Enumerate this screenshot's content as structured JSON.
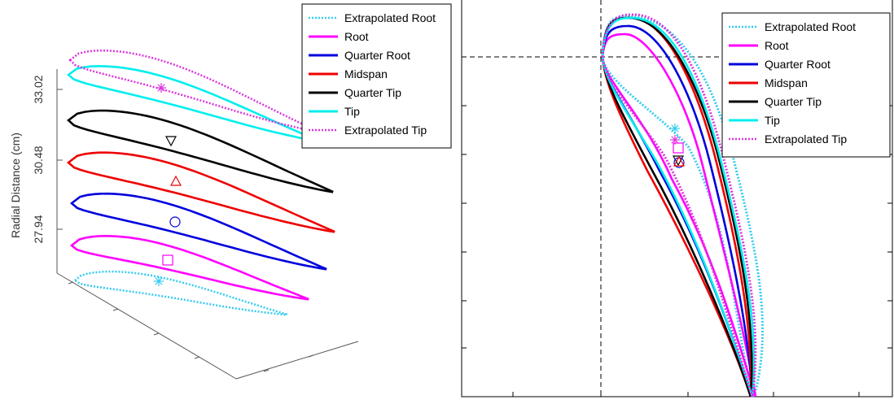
{
  "chart_data": [
    {
      "type": "line",
      "view": "3d-stack",
      "title": "",
      "ylabel": "Radial Distance (cm)",
      "z_ticks": [
        "27.94",
        "30.48",
        "33.02"
      ],
      "legend_position": "top-right",
      "series": [
        {
          "name": "Extrapolated Root",
          "color": "#33ccee",
          "style": "dotted",
          "marker": "*",
          "section_level": 0
        },
        {
          "name": "Root",
          "color": "#ff00ff",
          "style": "solid",
          "marker": "square",
          "section_level": 1
        },
        {
          "name": "Quarter Root",
          "color": "#0000dd",
          "style": "solid",
          "marker": "circle",
          "section_level": 2
        },
        {
          "name": "Midspan",
          "color": "#ee0000",
          "style": "solid",
          "marker": "triangle-up",
          "section_level": 3
        },
        {
          "name": "Quarter Tip",
          "color": "#000000",
          "style": "solid",
          "marker": "triangle-down",
          "section_level": 4
        },
        {
          "name": "Tip",
          "color": "#00eeee",
          "style": "solid",
          "marker": "none",
          "section_level": 5
        },
        {
          "name": "Extrapolated Tip",
          "color": "#dd33dd",
          "style": "dotted",
          "marker": "*",
          "section_level": 5
        }
      ]
    },
    {
      "type": "line",
      "view": "top-overlay",
      "title": "",
      "legend_position": "top-right",
      "reference_lines": "dashed crosshair at leading edge",
      "series": [
        {
          "name": "Extrapolated Root",
          "color": "#33ccee",
          "style": "dotted"
        },
        {
          "name": "Root",
          "color": "#ff00ff",
          "style": "solid"
        },
        {
          "name": "Quarter Root",
          "color": "#0000dd",
          "style": "solid"
        },
        {
          "name": "Midspan",
          "color": "#ee0000",
          "style": "solid"
        },
        {
          "name": "Quarter Tip",
          "color": "#000000",
          "style": "solid"
        },
        {
          "name": "Tip",
          "color": "#00eeee",
          "style": "solid"
        },
        {
          "name": "Extrapolated Tip",
          "color": "#dd33dd",
          "style": "dotted"
        }
      ]
    }
  ]
}
